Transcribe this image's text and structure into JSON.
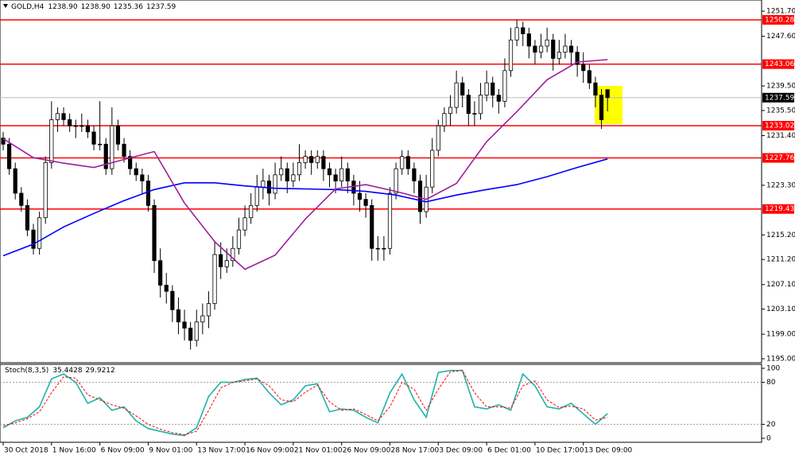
{
  "chart_data": [
    {
      "type": "candlestick",
      "title": "GOLD,H4",
      "header_values": [
        "1238.90",
        "1238.90",
        "1235.36",
        "1237.59"
      ],
      "xlim": [
        -0.526,
        125.5
      ],
      "ylim": [
        1194.35,
        1253.52
      ],
      "xticks": [
        {
          "value": 0,
          "label": "30 Oct 2018"
        },
        {
          "value": 8,
          "label": "1 Nov 16:00"
        },
        {
          "value": 16,
          "label": "6 Nov 09:00"
        },
        {
          "value": 24,
          "label": "9 Nov 01:00"
        },
        {
          "value": 32,
          "label": "13 Nov 17:00"
        },
        {
          "value": 40,
          "label": "16 Nov 09:00"
        },
        {
          "value": 48,
          "label": "21 Nov 01:00"
        },
        {
          "value": 56,
          "label": "26 Nov 09:00"
        },
        {
          "value": 64,
          "label": "28 Nov 17:00"
        },
        {
          "value": 72,
          "label": "3 Dec 09:00"
        },
        {
          "value": 80,
          "label": "6 Dec 01:00"
        },
        {
          "value": 88,
          "label": "10 Dec 17:00"
        },
        {
          "value": 96,
          "label": "13 Dec 09:00"
        }
      ],
      "yticks": [
        {
          "value": 1251.7,
          "label": "1251.70"
        },
        {
          "value": 1247.6,
          "label": "1247.60"
        },
        {
          "value": 1239.5,
          "label": "1239.50"
        },
        {
          "value": 1235.5,
          "label": "1235.50"
        },
        {
          "value": 1231.4,
          "label": "1231.40"
        },
        {
          "value": 1223.3,
          "label": "1223.30"
        },
        {
          "value": 1215.2,
          "label": "1215.20"
        },
        {
          "value": 1211.2,
          "label": "1211.20"
        },
        {
          "value": 1207.1,
          "label": "1207.10"
        },
        {
          "value": 1203.1,
          "label": "1203.10"
        },
        {
          "value": 1199,
          "label": "1199.00"
        },
        {
          "value": 1195,
          "label": "1195.00"
        }
      ],
      "hlines": [
        1250.28,
        1243.06,
        1233.02,
        1227.76,
        1219.43
      ],
      "hline_color": "#ff0000",
      "last_price": 1237.59,
      "ohlc": [
        [
          1231,
          1232,
          1229,
          1230
        ],
        [
          1230,
          1231,
          1225,
          1226
        ],
        [
          1226,
          1227,
          1221,
          1222
        ],
        [
          1222,
          1223,
          1219,
          1220
        ],
        [
          1220,
          1221,
          1215,
          1216
        ],
        [
          1216,
          1217,
          1212,
          1213
        ],
        [
          1213,
          1219,
          1212,
          1218
        ],
        [
          1218,
          1228,
          1217,
          1227
        ],
        [
          1227,
          1237,
          1226,
          1234
        ],
        [
          1234,
          1236,
          1232,
          1235
        ],
        [
          1235,
          1236,
          1233,
          1234
        ],
        [
          1234,
          1235,
          1232,
          1233
        ],
        [
          1233,
          1234,
          1231,
          1233
        ],
        [
          1233,
          1235,
          1232,
          1233
        ],
        [
          1233,
          1234,
          1231,
          1232
        ],
        [
          1232,
          1233,
          1229,
          1230
        ],
        [
          1230,
          1237,
          1229,
          1230
        ],
        [
          1230,
          1231,
          1225,
          1226
        ],
        [
          1226,
          1236,
          1225,
          1233
        ],
        [
          1233,
          1234,
          1229,
          1230
        ],
        [
          1230,
          1231,
          1227,
          1228
        ],
        [
          1228,
          1229,
          1225,
          1226
        ],
        [
          1226,
          1227,
          1224,
          1225
        ],
        [
          1225,
          1226,
          1222,
          1224
        ],
        [
          1224,
          1225,
          1219,
          1220
        ],
        [
          1220,
          1221,
          1209,
          1211
        ],
        [
          1211,
          1213,
          1205,
          1207
        ],
        [
          1207,
          1209,
          1204,
          1206
        ],
        [
          1206,
          1207,
          1201,
          1203
        ],
        [
          1203,
          1205,
          1199,
          1201
        ],
        [
          1201,
          1203,
          1198,
          1200
        ],
        [
          1200,
          1201,
          1196.5,
          1198
        ],
        [
          1198,
          1203,
          1197,
          1201
        ],
        [
          1201,
          1204,
          1199,
          1202
        ],
        [
          1202,
          1206,
          1200,
          1204
        ],
        [
          1204,
          1214,
          1203,
          1212
        ],
        [
          1212,
          1214,
          1208,
          1210
        ],
        [
          1210,
          1213,
          1209,
          1211
        ],
        [
          1211,
          1215,
          1210,
          1213
        ],
        [
          1213,
          1218,
          1212,
          1216
        ],
        [
          1216,
          1220,
          1215,
          1218
        ],
        [
          1218,
          1222,
          1217,
          1220
        ],
        [
          1220,
          1225,
          1219,
          1223
        ],
        [
          1223,
          1226,
          1221,
          1224
        ],
        [
          1224,
          1225,
          1220,
          1222
        ],
        [
          1222,
          1227,
          1221,
          1225
        ],
        [
          1225,
          1228,
          1224,
          1226
        ],
        [
          1226,
          1227,
          1222,
          1224
        ],
        [
          1224,
          1227,
          1223,
          1225
        ],
        [
          1225,
          1230,
          1224,
          1227
        ],
        [
          1227,
          1229,
          1226,
          1228
        ],
        [
          1228,
          1229,
          1225,
          1227
        ],
        [
          1227,
          1229,
          1226,
          1228
        ],
        [
          1228,
          1229,
          1224,
          1226
        ],
        [
          1226,
          1227,
          1223,
          1225
        ],
        [
          1225,
          1226,
          1222,
          1224
        ],
        [
          1224,
          1228,
          1223,
          1226
        ],
        [
          1226,
          1227,
          1222,
          1224
        ],
        [
          1224,
          1225,
          1220,
          1222
        ],
        [
          1222,
          1224,
          1219,
          1221
        ],
        [
          1221,
          1222,
          1218,
          1220
        ],
        [
          1220,
          1221,
          1211,
          1213
        ],
        [
          1213,
          1215,
          1211,
          1213
        ],
        [
          1213,
          1215,
          1211,
          1213
        ],
        [
          1213,
          1223,
          1212,
          1222
        ],
        [
          1222,
          1227,
          1221,
          1226
        ],
        [
          1226,
          1229,
          1225,
          1228
        ],
        [
          1228,
          1229,
          1225,
          1226
        ],
        [
          1226,
          1227,
          1222,
          1224
        ],
        [
          1224,
          1225,
          1217,
          1219
        ],
        [
          1219,
          1225,
          1218,
          1223
        ],
        [
          1223,
          1231,
          1222,
          1229
        ],
        [
          1229,
          1234,
          1228,
          1233
        ],
        [
          1233,
          1236,
          1232,
          1235
        ],
        [
          1235,
          1238,
          1233,
          1236
        ],
        [
          1236,
          1242,
          1235,
          1240
        ],
        [
          1240,
          1241,
          1236,
          1238
        ],
        [
          1238,
          1239,
          1233,
          1235
        ],
        [
          1235,
          1237,
          1233,
          1235
        ],
        [
          1235,
          1240,
          1234,
          1238
        ],
        [
          1238,
          1242,
          1237,
          1240
        ],
        [
          1240,
          1241,
          1236,
          1238
        ],
        [
          1238,
          1239,
          1235,
          1237
        ],
        [
          1237,
          1244,
          1236,
          1242
        ],
        [
          1242,
          1249,
          1241,
          1247
        ],
        [
          1247,
          1250.3,
          1246,
          1249
        ],
        [
          1249,
          1250,
          1246,
          1248
        ],
        [
          1248,
          1249,
          1244,
          1246
        ],
        [
          1246,
          1247,
          1243,
          1245
        ],
        [
          1245,
          1248,
          1244,
          1246
        ],
        [
          1246,
          1249,
          1245,
          1247
        ],
        [
          1247,
          1248,
          1242,
          1244
        ],
        [
          1244,
          1247,
          1243,
          1245
        ],
        [
          1245,
          1248,
          1244,
          1246
        ],
        [
          1246,
          1247,
          1243,
          1245
        ],
        [
          1245,
          1246,
          1241,
          1243
        ],
        [
          1243,
          1245,
          1240,
          1242
        ],
        [
          1242,
          1243,
          1239,
          1240
        ],
        [
          1240,
          1241,
          1236,
          1238
        ],
        [
          1238,
          1239,
          1232.5,
          1234
        ],
        [
          1238.9,
          1238.9,
          1235.36,
          1237.59
        ]
      ],
      "series": [
        {
          "color": "#0000ff",
          "x": [
            0,
            5,
            10,
            15,
            20,
            25,
            30,
            35,
            40,
            45,
            50,
            55,
            60,
            65,
            70,
            75,
            80,
            85,
            90,
            95,
            100
          ],
          "values": [
            1211.8,
            1213.7,
            1216.5,
            1218.7,
            1220.8,
            1222.6,
            1223.7,
            1223.7,
            1223.2,
            1222.8,
            1222.7,
            1222.6,
            1222.3,
            1221.7,
            1220.6,
            1221.7,
            1222.6,
            1223.4,
            1224.7,
            1226.2,
            1227.6
          ]
        },
        {
          "color": "#9c1f9c",
          "x": [
            0,
            5,
            10,
            15,
            20,
            25,
            30,
            35,
            40,
            45,
            50,
            55,
            60,
            65,
            70,
            75,
            80,
            85,
            90,
            95,
            100
          ],
          "values": [
            1230.9,
            1227.8,
            1226.9,
            1226.2,
            1227.5,
            1228.8,
            1220.4,
            1214.1,
            1209.6,
            1211.9,
            1217.8,
            1222.7,
            1223.4,
            1222.3,
            1221.0,
            1223.6,
            1230.4,
            1235.3,
            1240.5,
            1243.4,
            1243.8
          ]
        }
      ]
    },
    {
      "type": "stochastic",
      "title": "Stoch(8,3,5)",
      "header_values": [
        "35.4428",
        "29.9212"
      ],
      "ylim": [
        -5.7,
        105.7
      ],
      "yticks": [
        0,
        20,
        80,
        100
      ],
      "levels": [
        20,
        80
      ],
      "series": [
        {
          "color": "#20b2aa",
          "dash": false,
          "x": [
            0,
            2,
            4,
            6,
            8,
            10,
            12,
            14,
            16,
            18,
            20,
            22,
            24,
            26,
            28,
            30,
            32,
            34,
            36,
            38,
            40,
            42,
            44,
            46,
            48,
            50,
            52,
            54,
            56,
            58,
            60,
            62,
            64,
            66,
            68,
            70,
            72,
            74,
            76,
            78,
            80,
            82,
            84,
            86,
            88,
            90,
            92,
            94,
            96,
            98,
            100
          ],
          "values": [
            15,
            25,
            30,
            45,
            85,
            92,
            80,
            50,
            58,
            40,
            45,
            25,
            14,
            10,
            6,
            4,
            15,
            60,
            80,
            80,
            84,
            86,
            65,
            48,
            55,
            75,
            78,
            38,
            42,
            40,
            30,
            22,
            65,
            92,
            55,
            30,
            94,
            97,
            97,
            45,
            42,
            48,
            40,
            92,
            75,
            45,
            42,
            50,
            35,
            20,
            35.4428
          ]
        },
        {
          "color": "#ff0000",
          "dash": true,
          "x": [
            0,
            2,
            4,
            6,
            8,
            10,
            12,
            14,
            16,
            18,
            20,
            22,
            24,
            26,
            28,
            30,
            32,
            34,
            36,
            38,
            40,
            42,
            44,
            46,
            48,
            50,
            52,
            54,
            56,
            58,
            60,
            62,
            64,
            66,
            68,
            70,
            72,
            74,
            76,
            78,
            80,
            82,
            84,
            86,
            88,
            90,
            92,
            94,
            96,
            98,
            100
          ],
          "values": [
            18,
            22,
            28,
            38,
            65,
            88,
            86,
            62,
            55,
            48,
            43,
            32,
            20,
            13,
            8,
            5,
            10,
            40,
            72,
            80,
            82,
            85,
            75,
            55,
            52,
            66,
            76,
            52,
            40,
            42,
            34,
            25,
            45,
            80,
            70,
            40,
            70,
            95,
            97,
            65,
            45,
            45,
            43,
            75,
            82,
            55,
            44,
            46,
            42,
            26,
            29.9212
          ]
        }
      ]
    }
  ]
}
